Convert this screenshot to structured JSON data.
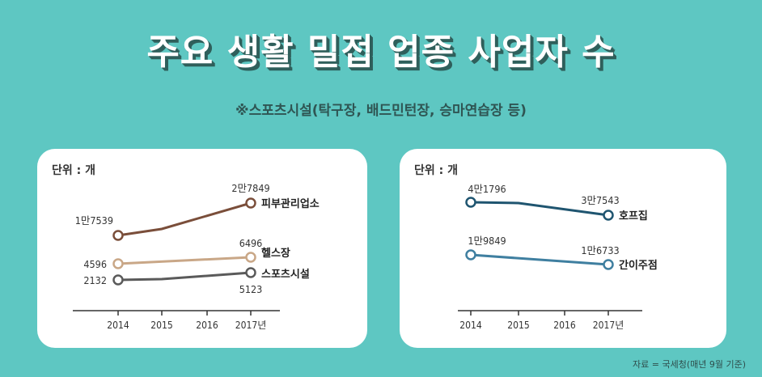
{
  "title": "주요 생활 밀접 업종 사업자 수",
  "subtitle": "※스포츠시설(탁구장, 배드민턴장, 승마연습장 등)",
  "source": "자료 = 국세청(매년 9월 기준)",
  "colors": {
    "background": "#5ec7c2",
    "beauty": "#7a4e3a",
    "gym": "#c9a787",
    "sports": "#5a5a5a",
    "hof": "#1f5570",
    "bar": "#3f7fa0"
  },
  "chart_data": [
    {
      "type": "line",
      "unit_label": "단위 : 개",
      "x": [
        "2014",
        "2015",
        "2016",
        "2017년"
      ],
      "series": [
        {
          "name": "피부관리업소",
          "values": [
            17539,
            null,
            null,
            27849
          ],
          "start_label": "1만7539",
          "end_label": "2만7849",
          "color": "#7a4e3a"
        },
        {
          "name": "헬스장",
          "values": [
            4596,
            null,
            null,
            6496
          ],
          "start_label": "4596",
          "end_label": "6496",
          "color": "#c9a787"
        },
        {
          "name": "스포츠시설",
          "values": [
            2132,
            null,
            null,
            5123
          ],
          "start_label": "2132",
          "end_label": "5123",
          "color": "#5a5a5a"
        }
      ]
    },
    {
      "type": "line",
      "unit_label": "단위 : 개",
      "x": [
        "2014",
        "2015",
        "2016",
        "2017년"
      ],
      "series": [
        {
          "name": "호프집",
          "values": [
            41796,
            null,
            null,
            37543
          ],
          "start_label": "4만1796",
          "end_label": "3만7543",
          "color": "#1f5570"
        },
        {
          "name": "간이주점",
          "values": [
            19849,
            null,
            null,
            16733
          ],
          "start_label": "1만9849",
          "end_label": "1만6733",
          "color": "#3f7fa0"
        }
      ]
    }
  ]
}
